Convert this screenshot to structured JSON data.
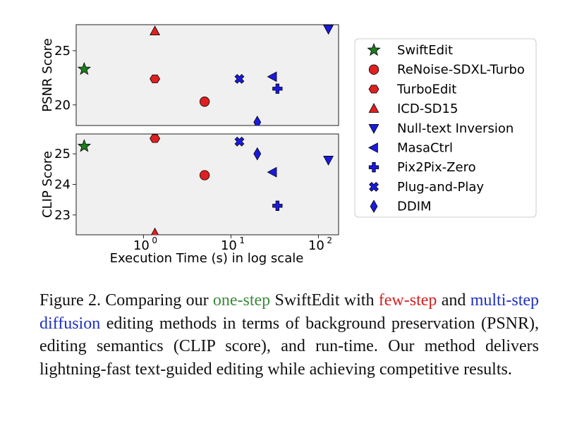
{
  "chart_data": {
    "type": "scatter",
    "x_scale": "log",
    "xlabel": "Execution Time (s) in log scale",
    "x_ticks": [
      1,
      10,
      100
    ],
    "x_tick_labels": [
      {
        "base": "10",
        "exp": "0"
      },
      {
        "base": "10",
        "exp": "1"
      },
      {
        "base": "10",
        "exp": "2"
      }
    ],
    "xlim": [
      0.17,
      170
    ],
    "grid": false,
    "legend_position": "right",
    "panels": [
      {
        "id": "psnr",
        "ylabel": "PSNR Score",
        "ylim": [
          18.1,
          27.4
        ],
        "y_ticks": [
          20,
          25
        ],
        "points": [
          {
            "series": "SwiftEdit",
            "x": 0.21,
            "y": 23.3
          },
          {
            "series": "TurboEdit",
            "x": 1.35,
            "y": 22.4
          },
          {
            "series": "ICD-SD15",
            "x": 1.35,
            "y": 26.8
          },
          {
            "series": "ReNoise-SDXL-Turbo",
            "x": 5.0,
            "y": 20.3
          },
          {
            "series": "Plug-and-Play",
            "x": 12.5,
            "y": 22.4
          },
          {
            "series": "DDIM",
            "x": 20.0,
            "y": 18.4
          },
          {
            "series": "MasaCtrl",
            "x": 30.0,
            "y": 22.6
          },
          {
            "series": "Pix2Pix-Zero",
            "x": 34.0,
            "y": 21.5
          },
          {
            "series": "Null-text Inversion",
            "x": 130.0,
            "y": 27.0
          }
        ]
      },
      {
        "id": "clip",
        "ylabel": "CLIP Score",
        "ylim": [
          22.35,
          25.65
        ],
        "y_ticks": [
          23,
          24,
          25
        ],
        "points": [
          {
            "series": "SwiftEdit",
            "x": 0.21,
            "y": 25.25
          },
          {
            "series": "TurboEdit",
            "x": 1.35,
            "y": 25.5
          },
          {
            "series": "ICD-SD15",
            "x": 1.35,
            "y": 22.4
          },
          {
            "series": "ReNoise-SDXL-Turbo",
            "x": 5.0,
            "y": 24.3
          },
          {
            "series": "Plug-and-Play",
            "x": 12.5,
            "y": 25.4
          },
          {
            "series": "DDIM",
            "x": 20.0,
            "y": 25.0
          },
          {
            "series": "MasaCtrl",
            "x": 30.0,
            "y": 24.4
          },
          {
            "series": "Pix2Pix-Zero",
            "x": 34.0,
            "y": 23.3
          },
          {
            "series": "Null-text Inversion",
            "x": 130.0,
            "y": 24.8
          }
        ]
      }
    ],
    "legend": [
      {
        "name": "SwiftEdit",
        "marker": "star",
        "color": "#1e7d1e"
      },
      {
        "name": "ReNoise-SDXL-Turbo",
        "marker": "circle",
        "color": "#e02020"
      },
      {
        "name": "TurboEdit",
        "marker": "hexagon",
        "color": "#e02020"
      },
      {
        "name": "ICD-SD15",
        "marker": "triangle-up",
        "color": "#e02020"
      },
      {
        "name": "Null-text Inversion",
        "marker": "triangle-down",
        "color": "#1a1ae0"
      },
      {
        "name": "MasaCtrl",
        "marker": "triangle-left",
        "color": "#1a1ae0"
      },
      {
        "name": "Pix2Pix-Zero",
        "marker": "plus",
        "color": "#1a1ae0"
      },
      {
        "name": "Plug-and-Play",
        "marker": "x",
        "color": "#1a1ae0"
      },
      {
        "name": "DDIM",
        "marker": "diamond",
        "color": "#1a1ae0"
      }
    ]
  },
  "caption": {
    "part1": "Figure 2.  Comparing our ",
    "green": "one-step",
    "part2": " SwiftEdit with ",
    "red": "few-step",
    "part3": " and ",
    "blue": "multi-step diffusion",
    "part4": " editing methods in terms of background preservation (PSNR), editing semantics (CLIP score), and run-time. Our method delivers lightning-fast text-guided editing while achieving competitive results."
  }
}
